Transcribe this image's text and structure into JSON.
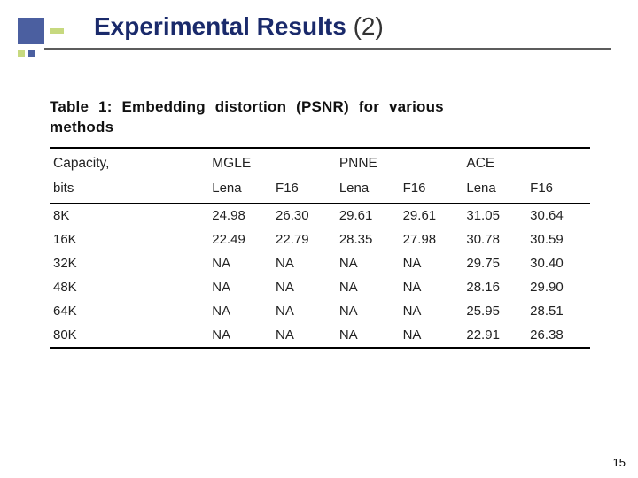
{
  "slide": {
    "title_main": "Experimental Results",
    "title_paren": "(2)",
    "page_number": "15"
  },
  "table": {
    "caption_line1": "Table 1: Embedding distortion (PSNR) for various",
    "caption_line2": "methods",
    "groups": [
      "MGLE",
      "PNNE",
      "ACE"
    ],
    "corner": "Capacity,",
    "corner_sub": "bits",
    "subcols": [
      "Lena",
      "F16",
      "Lena",
      "F16",
      "Lena",
      "F16"
    ],
    "rows": [
      {
        "cap": "8K",
        "v": [
          "24.98",
          "26.30",
          "29.61",
          "29.61",
          "31.05",
          "30.64"
        ]
      },
      {
        "cap": "16K",
        "v": [
          "22.49",
          "22.79",
          "28.35",
          "27.98",
          "30.78",
          "30.59"
        ]
      },
      {
        "cap": "32K",
        "v": [
          "NA",
          "NA",
          "NA",
          "NA",
          "29.75",
          "30.40"
        ]
      },
      {
        "cap": "48K",
        "v": [
          "NA",
          "NA",
          "NA",
          "NA",
          "28.16",
          "29.90"
        ]
      },
      {
        "cap": "64K",
        "v": [
          "NA",
          "NA",
          "NA",
          "NA",
          "25.95",
          "28.51"
        ]
      },
      {
        "cap": "80K",
        "v": [
          "NA",
          "NA",
          "NA",
          "NA",
          "22.91",
          "26.38"
        ]
      }
    ]
  },
  "colors": {
    "title": "#1a2a6b",
    "accent_blue": "#4b5fa0",
    "accent_green": "#c7d97f",
    "rule": "#5c5c5c",
    "text": "#222222",
    "background": "#ffffff"
  }
}
